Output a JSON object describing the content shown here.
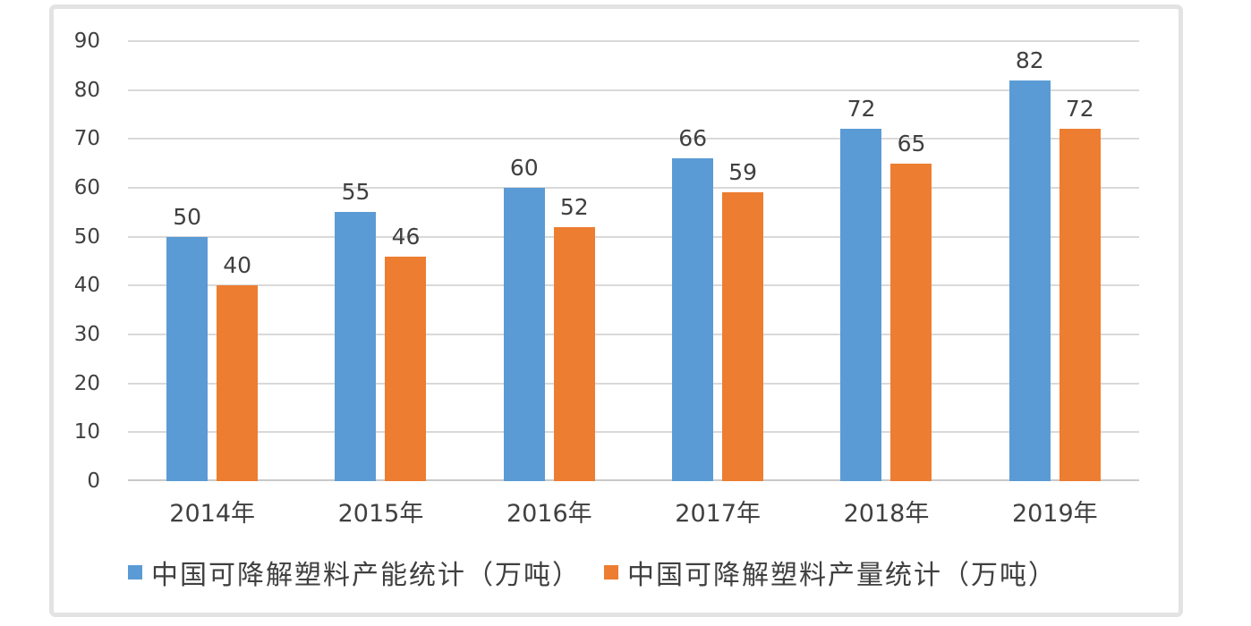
{
  "chart_data": {
    "type": "bar",
    "title": "",
    "xlabel": "",
    "ylabel": "",
    "categories": [
      "2014年",
      "2015年",
      "2016年",
      "2017年",
      "2018年",
      "2019年"
    ],
    "series": [
      {
        "name": "中国可降解塑料产能统计（万吨）",
        "color": "#5B9BD5",
        "values": [
          50,
          55,
          60,
          66,
          72,
          82
        ]
      },
      {
        "name": "中国可降解塑料产量统计（万吨）",
        "color": "#ED7D31",
        "values": [
          40,
          46,
          52,
          59,
          65,
          72
        ]
      }
    ],
    "y_axis": {
      "min": 0,
      "max": 90,
      "step": 10,
      "ticks": [
        0,
        10,
        20,
        30,
        40,
        50,
        60,
        70,
        80,
        90
      ]
    },
    "grid": true,
    "data_labels": true,
    "legend_position": "bottom",
    "colors": {
      "grid": "#D9D9D9",
      "axis_line": "#C9C9C9",
      "text": "#404040",
      "panel_border": "#E3E3E3",
      "background": "#FFFFFF"
    }
  }
}
